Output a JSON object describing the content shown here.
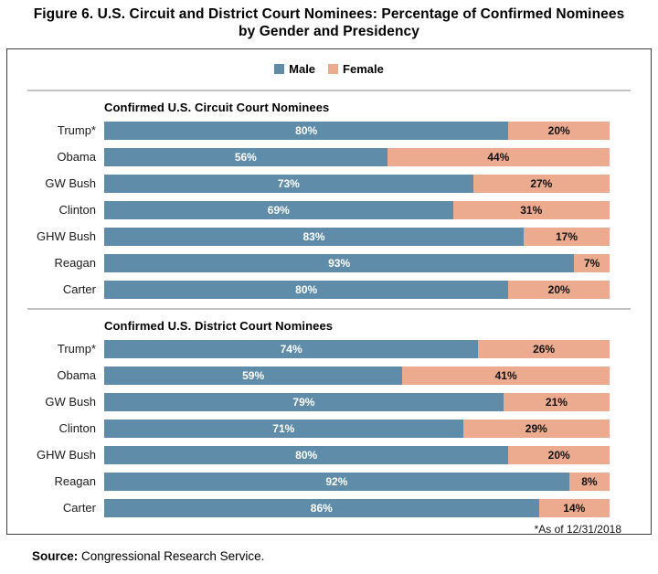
{
  "title": "Figure 6. U.S. Circuit and District Court Nominees: Percentage of Confirmed Nominees by Gender and Presidency",
  "legend": {
    "male_label": "Male",
    "female_label": "Female"
  },
  "colors": {
    "male": "#5e8ca9",
    "female": "#ecaa8e"
  },
  "footnote": "*As of 12/31/2018",
  "source": {
    "label": "Source:",
    "text": " Congressional Research Service."
  },
  "chart_data": [
    {
      "type": "bar",
      "stacked": true,
      "orientation": "horizontal",
      "title": "Confirmed U.S. Circuit Court Nominees",
      "unit": "%",
      "xlim": [
        0,
        100
      ],
      "grid": false,
      "legend_position": "top-center",
      "categories": [
        "Trump*",
        "Obama",
        "GW Bush",
        "Clinton",
        "GHW Bush",
        "Reagan",
        "Carter"
      ],
      "series": [
        {
          "name": "Male",
          "values": [
            80,
            56,
            73,
            69,
            83,
            93,
            80
          ]
        },
        {
          "name": "Female",
          "values": [
            20,
            44,
            27,
            31,
            17,
            7,
            20
          ]
        }
      ]
    },
    {
      "type": "bar",
      "stacked": true,
      "orientation": "horizontal",
      "title": "Confirmed U.S. District Court Nominees",
      "unit": "%",
      "xlim": [
        0,
        100
      ],
      "grid": false,
      "legend_position": "top-center",
      "categories": [
        "Trump*",
        "Obama",
        "GW Bush",
        "Clinton",
        "GHW Bush",
        "Reagan",
        "Carter"
      ],
      "series": [
        {
          "name": "Male",
          "values": [
            74,
            59,
            79,
            71,
            80,
            92,
            86
          ]
        },
        {
          "name": "Female",
          "values": [
            26,
            41,
            21,
            29,
            20,
            8,
            14
          ]
        }
      ]
    }
  ]
}
